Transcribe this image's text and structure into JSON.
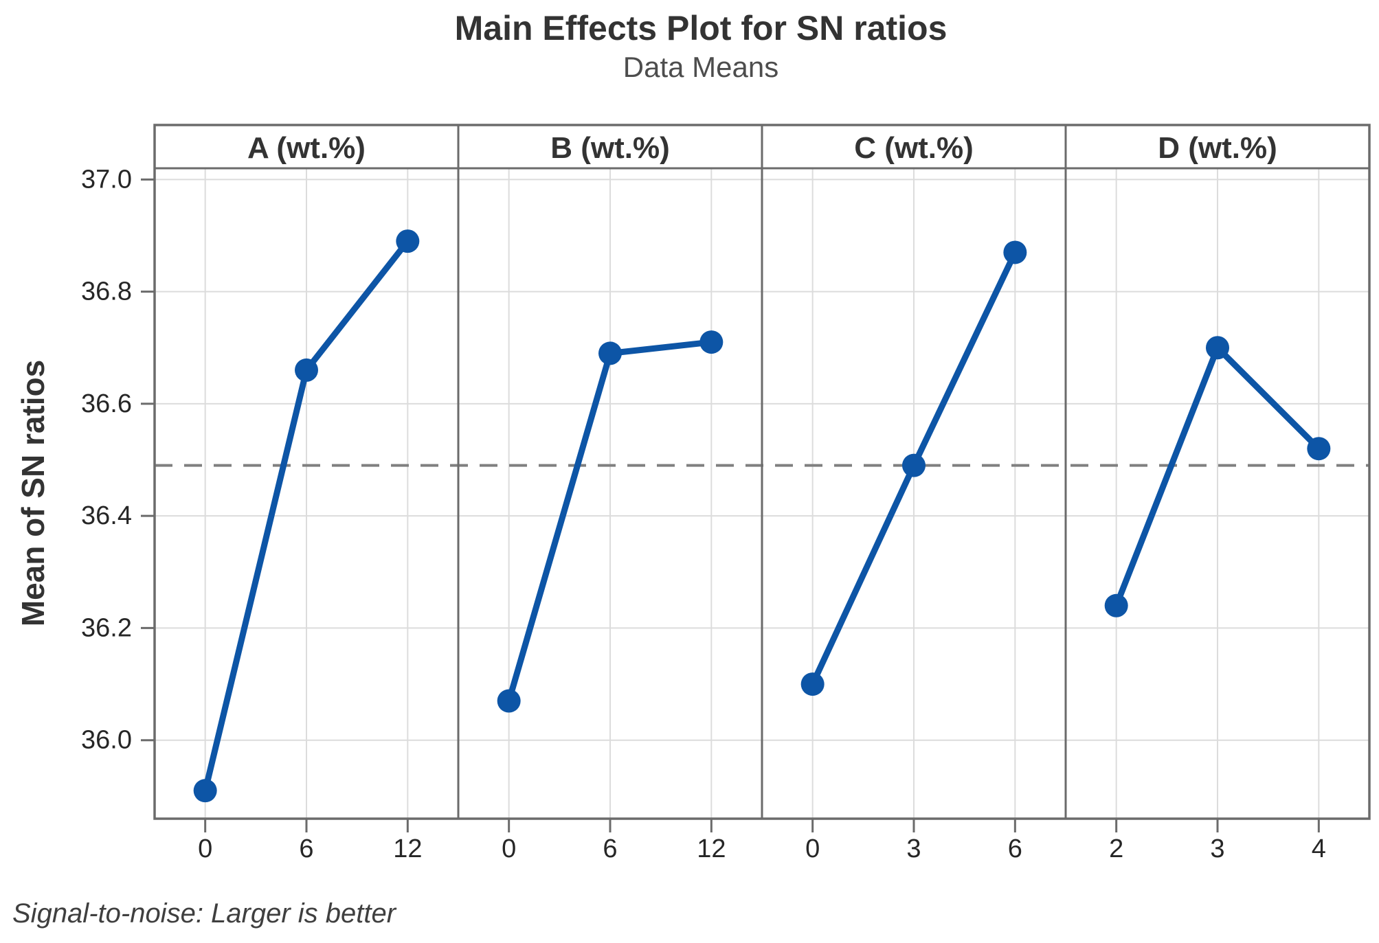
{
  "figure": {
    "title": "Main Effects Plot for SN ratios",
    "subtitle": "Data Means",
    "y_axis_title": "Mean of SN ratios",
    "footnote": "Signal-to-noise: Larger is better"
  },
  "colors": {
    "series": "#0d55a6",
    "gridline": "#dcdcdc",
    "axis": "#6b6b6b",
    "reference_line": "#808080",
    "tick_text": "#262626",
    "header_text": "#333333"
  },
  "chart_data": {
    "type": "line",
    "title": "Main Effects Plot for SN ratios",
    "subtitle": "Data Means",
    "ylabel": "Mean of SN ratios",
    "footnote": "Signal-to-noise: Larger is better",
    "ylim": [
      35.86,
      37.02
    ],
    "yticks": [
      36.0,
      36.2,
      36.4,
      36.6,
      36.8,
      37.0
    ],
    "ytick_labels": [
      "36.0",
      "36.2",
      "36.4",
      "36.6",
      "36.8",
      "37.0"
    ],
    "reference_line": 36.49,
    "grid": true,
    "legend": "none",
    "panels": [
      {
        "label": "A (wt.%)",
        "categories": [
          "0",
          "6",
          "12"
        ],
        "values": [
          35.91,
          36.66,
          36.89
        ]
      },
      {
        "label": "B (wt.%)",
        "categories": [
          "0",
          "6",
          "12"
        ],
        "values": [
          36.07,
          36.69,
          36.71
        ]
      },
      {
        "label": "C (wt.%)",
        "categories": [
          "0",
          "3",
          "6"
        ],
        "values": [
          36.1,
          36.49,
          36.87
        ]
      },
      {
        "label": "D (wt.%)",
        "categories": [
          "2",
          "3",
          "4"
        ],
        "values": [
          36.24,
          36.7,
          36.52
        ]
      }
    ]
  }
}
